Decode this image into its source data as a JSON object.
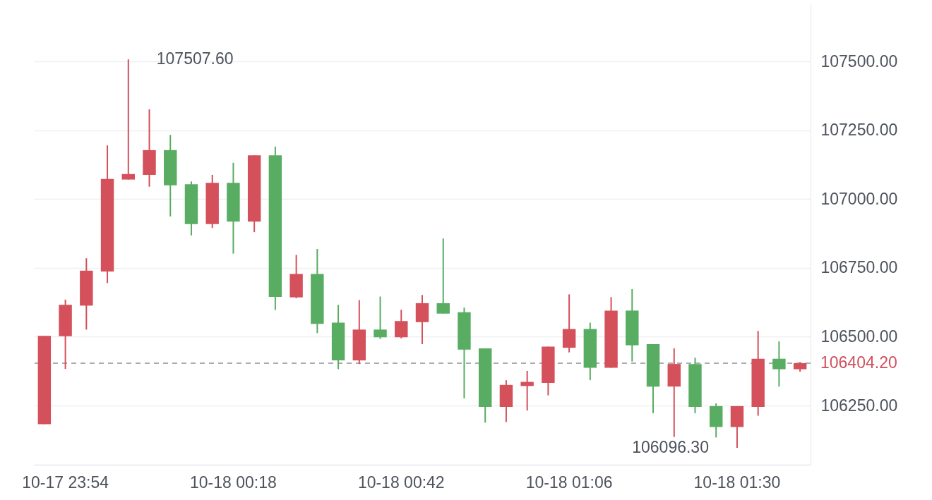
{
  "chart_data": {
    "type": "candlestick",
    "categories": [
      null,
      "10-17 23:54",
      null,
      null,
      null,
      null,
      null,
      null,
      null,
      "10-18 00:18",
      null,
      null,
      null,
      null,
      null,
      null,
      null,
      "10-18 00:42",
      null,
      null,
      null,
      null,
      null,
      null,
      null,
      "10-18 01:06",
      null,
      null,
      null,
      null,
      null,
      null,
      null,
      "10-18 01:30",
      null,
      null,
      null
    ],
    "ohlc": [
      [
        106182,
        106503,
        106182,
        106503
      ],
      [
        106502,
        106635,
        106383,
        106616
      ],
      [
        106613,
        106785,
        106526,
        106740
      ],
      [
        106737,
        107195,
        106695,
        107073
      ],
      [
        107071,
        107507.6,
        107071,
        107091
      ],
      [
        107088,
        107326,
        107045,
        107178
      ],
      [
        107178,
        107233,
        106937,
        107050
      ],
      [
        107054,
        107064,
        106868,
        106909
      ],
      [
        106909,
        107088,
        106895,
        107059
      ],
      [
        107059,
        107132,
        106802,
        106918
      ],
      [
        106918,
        107159,
        106880,
        107159
      ],
      [
        107159,
        107191,
        106597,
        106645
      ],
      [
        106643,
        106797,
        106640,
        106728
      ],
      [
        106728,
        106819,
        106513,
        106547
      ],
      [
        106551,
        106616,
        106382,
        106414
      ],
      [
        106414,
        106633,
        106401,
        106526
      ],
      [
        106526,
        106646,
        106492,
        106498
      ],
      [
        106498,
        106598,
        106494,
        106557
      ],
      [
        106553,
        106652,
        106473,
        106622
      ],
      [
        106622,
        106857,
        106584,
        106584
      ],
      [
        106589,
        106606,
        106276,
        106453
      ],
      [
        106458,
        106458,
        106188,
        106245
      ],
      [
        106245,
        106342,
        106190,
        106325
      ],
      [
        106321,
        106376,
        106232,
        106336
      ],
      [
        106332,
        106464,
        106287,
        106464
      ],
      [
        106460,
        106654,
        106443,
        106528
      ],
      [
        106528,
        106551,
        106342,
        106387
      ],
      [
        106387,
        106644,
        106387,
        106595
      ],
      [
        106595,
        106673,
        106410,
        106469
      ],
      [
        106473,
        106473,
        106222,
        106319
      ],
      [
        106319,
        106458,
        106136,
        106401
      ],
      [
        106401,
        106424,
        106222,
        106245
      ],
      [
        106248,
        106258,
        106134,
        106172
      ],
      [
        106172,
        106248,
        106096.3,
        106248
      ],
      [
        106245,
        106521,
        106213,
        106420
      ],
      [
        106420,
        106483,
        106319,
        106382
      ],
      [
        106382,
        106408,
        106373,
        106404.2
      ]
    ],
    "colors": [
      "#d4505b",
      "#d4505b",
      "#d4505b",
      "#d4505b",
      "#d4505b",
      "#d4505b",
      "#58ad62",
      "#58ad62",
      "#d4505b",
      "#58ad62",
      "#d4505b",
      "#58ad62",
      "#d4505b",
      "#58ad62",
      "#58ad62",
      "#d4505b",
      "#58ad62",
      "#d4505b",
      "#d4505b",
      "#58ad62",
      "#58ad62",
      "#58ad62",
      "#d4505b",
      "#d4505b",
      "#d4505b",
      "#d4505b",
      "#58ad62",
      "#d4505b",
      "#58ad62",
      "#58ad62",
      "#d4505b",
      "#58ad62",
      "#58ad62",
      "#d4505b",
      "#d4505b",
      "#58ad62",
      "#d4505b"
    ],
    "ylim": [
      106035,
      107713
    ],
    "yticks": [
      {
        "value": 106250,
        "label": "106250.00"
      },
      {
        "value": 106500,
        "label": "106500.00"
      },
      {
        "value": 106750,
        "label": "106750.00"
      },
      {
        "value": 107000,
        "label": "107000.00"
      },
      {
        "value": 107250,
        "label": "107250.00"
      },
      {
        "value": 107500,
        "label": "107500.00"
      }
    ],
    "grid": "y",
    "annotations": [
      "107507.60",
      "106096.30"
    ],
    "ref_lines": [
      {
        "axis": "y",
        "value": 106404.2,
        "label": "106404.20",
        "color": "#8d929b",
        "line_style": "dashed"
      }
    ]
  }
}
